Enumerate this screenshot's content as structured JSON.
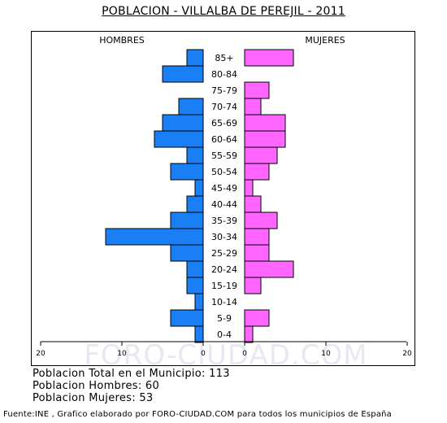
{
  "title": "POBLACION - VILLALBA DE PEREJIL - 2011",
  "watermark": "FORO-CIUDAD.COM",
  "stats": {
    "total": "Poblacion Total en el Municipio: 113",
    "hombres": "Poblacion Hombres: 60",
    "mujeres": "Poblacion Mujeres: 53"
  },
  "footer": "Fuente:INE , Grafico elaborado por FORO-CIUDAD.COM para todos los municipios de España",
  "colors": {
    "male": "#1a7ff5",
    "female": "#ff66ff",
    "outline": "#000000",
    "watermark": "#e6e8f2"
  },
  "chart_data": {
    "type": "bar",
    "orientation": "horizontal",
    "layout": "population-pyramid",
    "categories": [
      "85+",
      "80-84",
      "75-79",
      "70-74",
      "65-69",
      "60-64",
      "55-59",
      "50-54",
      "45-49",
      "40-44",
      "35-39",
      "30-34",
      "25-29",
      "20-24",
      "15-19",
      "10-14",
      "5-9",
      "0-4"
    ],
    "series": [
      {
        "name": "HOMBRES",
        "values": [
          2,
          5,
          0,
          3,
          5,
          6,
          2,
          4,
          1,
          2,
          4,
          12,
          4,
          2,
          2,
          1,
          4,
          1
        ]
      },
      {
        "name": "MUJERES",
        "values": [
          6,
          0,
          3,
          2,
          5,
          5,
          4,
          3,
          1,
          2,
          4,
          3,
          3,
          6,
          2,
          0,
          3,
          1
        ]
      }
    ],
    "axis_ticks_left": [
      "20",
      "10",
      "0"
    ],
    "axis_ticks_right": [
      "0",
      "10",
      "20"
    ],
    "xlim": [
      0,
      20
    ]
  }
}
